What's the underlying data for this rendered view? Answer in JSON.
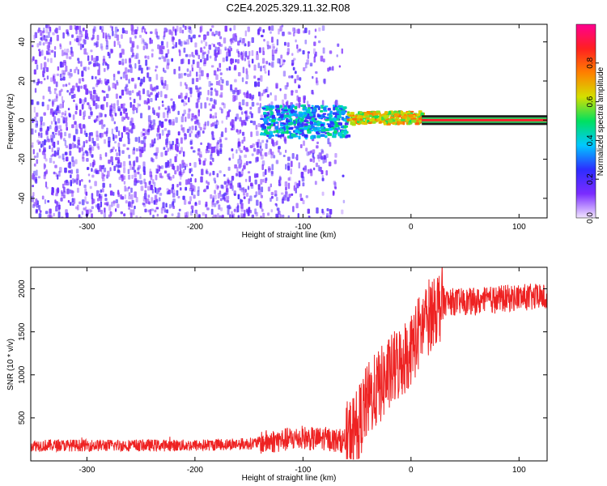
{
  "title": "C2E4.2025.329.11.32.R08",
  "chart_data": [
    {
      "type": "heatmap",
      "title": "C2E4.2025.329.11.32.R08",
      "xlabel": "Height of straight line (km)",
      "ylabel": "Frequency (Hz)",
      "xlim": [
        -352,
        126
      ],
      "ylim": [
        -50,
        49
      ],
      "xticks": [
        -300,
        -200,
        -100,
        0,
        100
      ],
      "yticks": [
        -40,
        -20,
        0,
        20,
        40
      ],
      "colorbar": {
        "label": "Normalized spectral amplitude",
        "range": [
          0,
          1
        ],
        "ticks": [
          0.0,
          0.2,
          0.4,
          0.6,
          0.8
        ],
        "tick_labels": [
          "0.0",
          "0.2",
          "0.4",
          "0.6",
          "0.8"
        ],
        "colors": [
          "#f2e6ff",
          "#7b2cff",
          "#2d2dff",
          "#00c8ff",
          "#00e060",
          "#d4e000",
          "#ff8000",
          "#ff2020",
          "#ff0090"
        ]
      },
      "regions": [
        {
          "x_range": [
            -352,
            -140
          ],
          "description": "noise",
          "level": 0.15
        },
        {
          "x_range": [
            -140,
            -60
          ],
          "description": "broadband signal near 0 Hz",
          "level": 0.35
        },
        {
          "x_range": [
            -60,
            10
          ],
          "description": "signal near 0-3 Hz",
          "level": 0.65
        },
        {
          "x_range": [
            10,
            126
          ],
          "description": "steady line at 0 Hz",
          "level": 0.9
        }
      ]
    },
    {
      "type": "line",
      "xlabel": "Height of straight line (km)",
      "ylabel": "SNR (10 * v/v)",
      "xlim": [
        -352,
        126
      ],
      "ylim": [
        0,
        2250
      ],
      "xticks": [
        -300,
        -200,
        -100,
        0,
        100
      ],
      "yticks": [
        500,
        1000,
        1500,
        2000
      ],
      "color": "#ee2222",
      "series": [
        {
          "name": "SNR",
          "x": [
            -352,
            -300,
            -250,
            -200,
            -150,
            -120,
            -100,
            -90,
            -80,
            -70,
            -60,
            -50,
            -40,
            -30,
            -20,
            -10,
            0,
            10,
            20,
            30,
            40,
            60,
            80,
            100,
            126
          ],
          "values": [
            180,
            180,
            180,
            180,
            200,
            240,
            270,
            250,
            260,
            240,
            230,
            400,
            700,
            850,
            1000,
            1150,
            1300,
            1550,
            1750,
            1850,
            1850,
            1850,
            1880,
            1900,
            1900
          ]
        }
      ]
    }
  ]
}
